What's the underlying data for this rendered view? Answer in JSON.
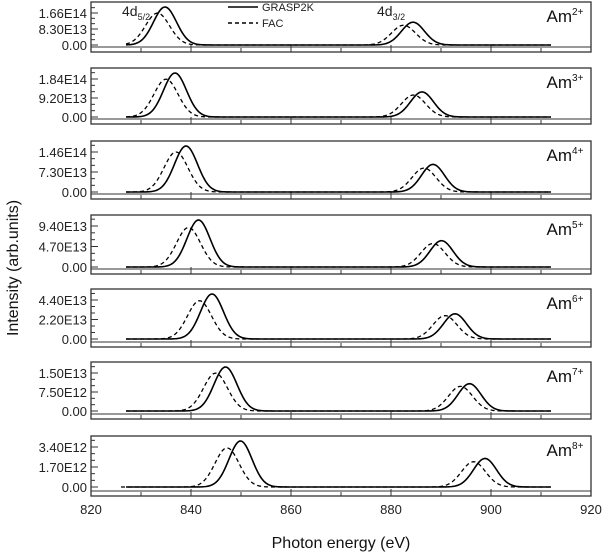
{
  "chart_data": {
    "type": "line",
    "title": "",
    "xlabel": "Photon energy (eV)",
    "ylabel": "Intensity (arb.units)",
    "xlim": [
      820,
      920
    ],
    "x_ticks": [
      820,
      840,
      860,
      880,
      900,
      920
    ],
    "x_minor_step": 10,
    "legend": {
      "position": "top-center (inside first panel)",
      "entries": [
        {
          "label": "GRASP2K",
          "style": "solid"
        },
        {
          "label": "FAC",
          "style": "dashed"
        }
      ]
    },
    "annotations": [
      {
        "text": "4d",
        "sub": "5/2",
        "panel": 0,
        "x": 829
      },
      {
        "text": "4d",
        "sub": "3/2",
        "panel": 0,
        "x": 880
      }
    ],
    "panels": [
      {
        "ion": "Am",
        "charge": "2+",
        "y_ticks": [
          "0.00",
          "8.30E13",
          "1.66E14"
        ],
        "ymax_label": 166000000000000.0,
        "series": [
          {
            "name": "GRASP2K",
            "peaks": [
              {
                "center": 834.8,
                "height": 1.0
              },
              {
                "center": 884.4,
                "height": 0.6
              }
            ],
            "sigma": 2.3
          },
          {
            "name": "FAC",
            "peaks": [
              {
                "center": 833.3,
                "height": 0.84
              },
              {
                "center": 882.5,
                "height": 0.52
              }
            ],
            "sigma": 2.4
          }
        ]
      },
      {
        "ion": "Am",
        "charge": "3+",
        "y_ticks": [
          "0.00",
          "9.20E13",
          "1.84E14"
        ],
        "ymax_label": 184000000000000.0,
        "series": [
          {
            "name": "GRASP2K",
            "peaks": [
              {
                "center": 836.8,
                "height": 1.0
              },
              {
                "center": 886.2,
                "height": 0.57
              }
            ],
            "sigma": 2.3
          },
          {
            "name": "FAC",
            "peaks": [
              {
                "center": 835.0,
                "height": 0.86
              },
              {
                "center": 884.5,
                "height": 0.5
              }
            ],
            "sigma": 2.4
          }
        ]
      },
      {
        "ion": "Am",
        "charge": "4+",
        "y_ticks": [
          "0.00",
          "7.30E13",
          "1.46E14"
        ],
        "ymax_label": 146000000000000.0,
        "series": [
          {
            "name": "GRASP2K",
            "peaks": [
              {
                "center": 839.0,
                "height": 1.0
              },
              {
                "center": 888.4,
                "height": 0.6
              }
            ],
            "sigma": 2.3
          },
          {
            "name": "FAC",
            "peaks": [
              {
                "center": 837.0,
                "height": 0.87
              },
              {
                "center": 886.6,
                "height": 0.52
              }
            ],
            "sigma": 2.4
          }
        ]
      },
      {
        "ion": "Am",
        "charge": "5+",
        "y_ticks": [
          "0.00",
          "4.70E13",
          "9.40E13"
        ],
        "ymax_label": 94000000000000.0,
        "series": [
          {
            "name": "GRASP2K",
            "peaks": [
              {
                "center": 841.5,
                "height": 1.0
              },
              {
                "center": 890.1,
                "height": 0.56
              }
            ],
            "sigma": 2.3
          },
          {
            "name": "FAC",
            "peaks": [
              {
                "center": 839.5,
                "height": 0.84
              },
              {
                "center": 888.4,
                "height": 0.5
              }
            ],
            "sigma": 2.4
          }
        ]
      },
      {
        "ion": "Am",
        "charge": "6+",
        "y_ticks": [
          "0.00",
          "2.20E13",
          "4.40E13"
        ],
        "ymax_label": 44000000000000.0,
        "series": [
          {
            "name": "GRASP2K",
            "peaks": [
              {
                "center": 844.2,
                "height": 1.0
              },
              {
                "center": 892.8,
                "height": 0.56
              }
            ],
            "sigma": 2.3
          },
          {
            "name": "FAC",
            "peaks": [
              {
                "center": 841.7,
                "height": 0.85
              },
              {
                "center": 890.8,
                "height": 0.52
              }
            ],
            "sigma": 2.4
          }
        ]
      },
      {
        "ion": "Am",
        "charge": "7+",
        "y_ticks": [
          "0.00",
          "7.50E12",
          "1.50E13"
        ],
        "ymax_label": 15000000000000.0,
        "series": [
          {
            "name": "GRASP2K",
            "peaks": [
              {
                "center": 846.9,
                "height": 1.0
              },
              {
                "center": 895.7,
                "height": 0.62
              }
            ],
            "sigma": 2.3
          },
          {
            "name": "FAC",
            "peaks": [
              {
                "center": 844.9,
                "height": 0.86
              },
              {
                "center": 893.9,
                "height": 0.56
              }
            ],
            "sigma": 2.4
          }
        ]
      },
      {
        "ion": "Am",
        "charge": "8+",
        "y_ticks": [
          "0.00",
          "1.70E12",
          "3.40E12"
        ],
        "ymax_label": 3400000000000.0,
        "series": [
          {
            "name": "GRASP2K",
            "peaks": [
              {
                "center": 849.9,
                "height": 1.0
              },
              {
                "center": 898.8,
                "height": 0.62
              }
            ],
            "sigma": 2.3
          },
          {
            "name": "FAC",
            "peaks": [
              {
                "center": 847.2,
                "height": 0.85
              },
              {
                "center": 896.5,
                "height": 0.55
              }
            ],
            "sigma": 2.4
          }
        ]
      }
    ]
  }
}
